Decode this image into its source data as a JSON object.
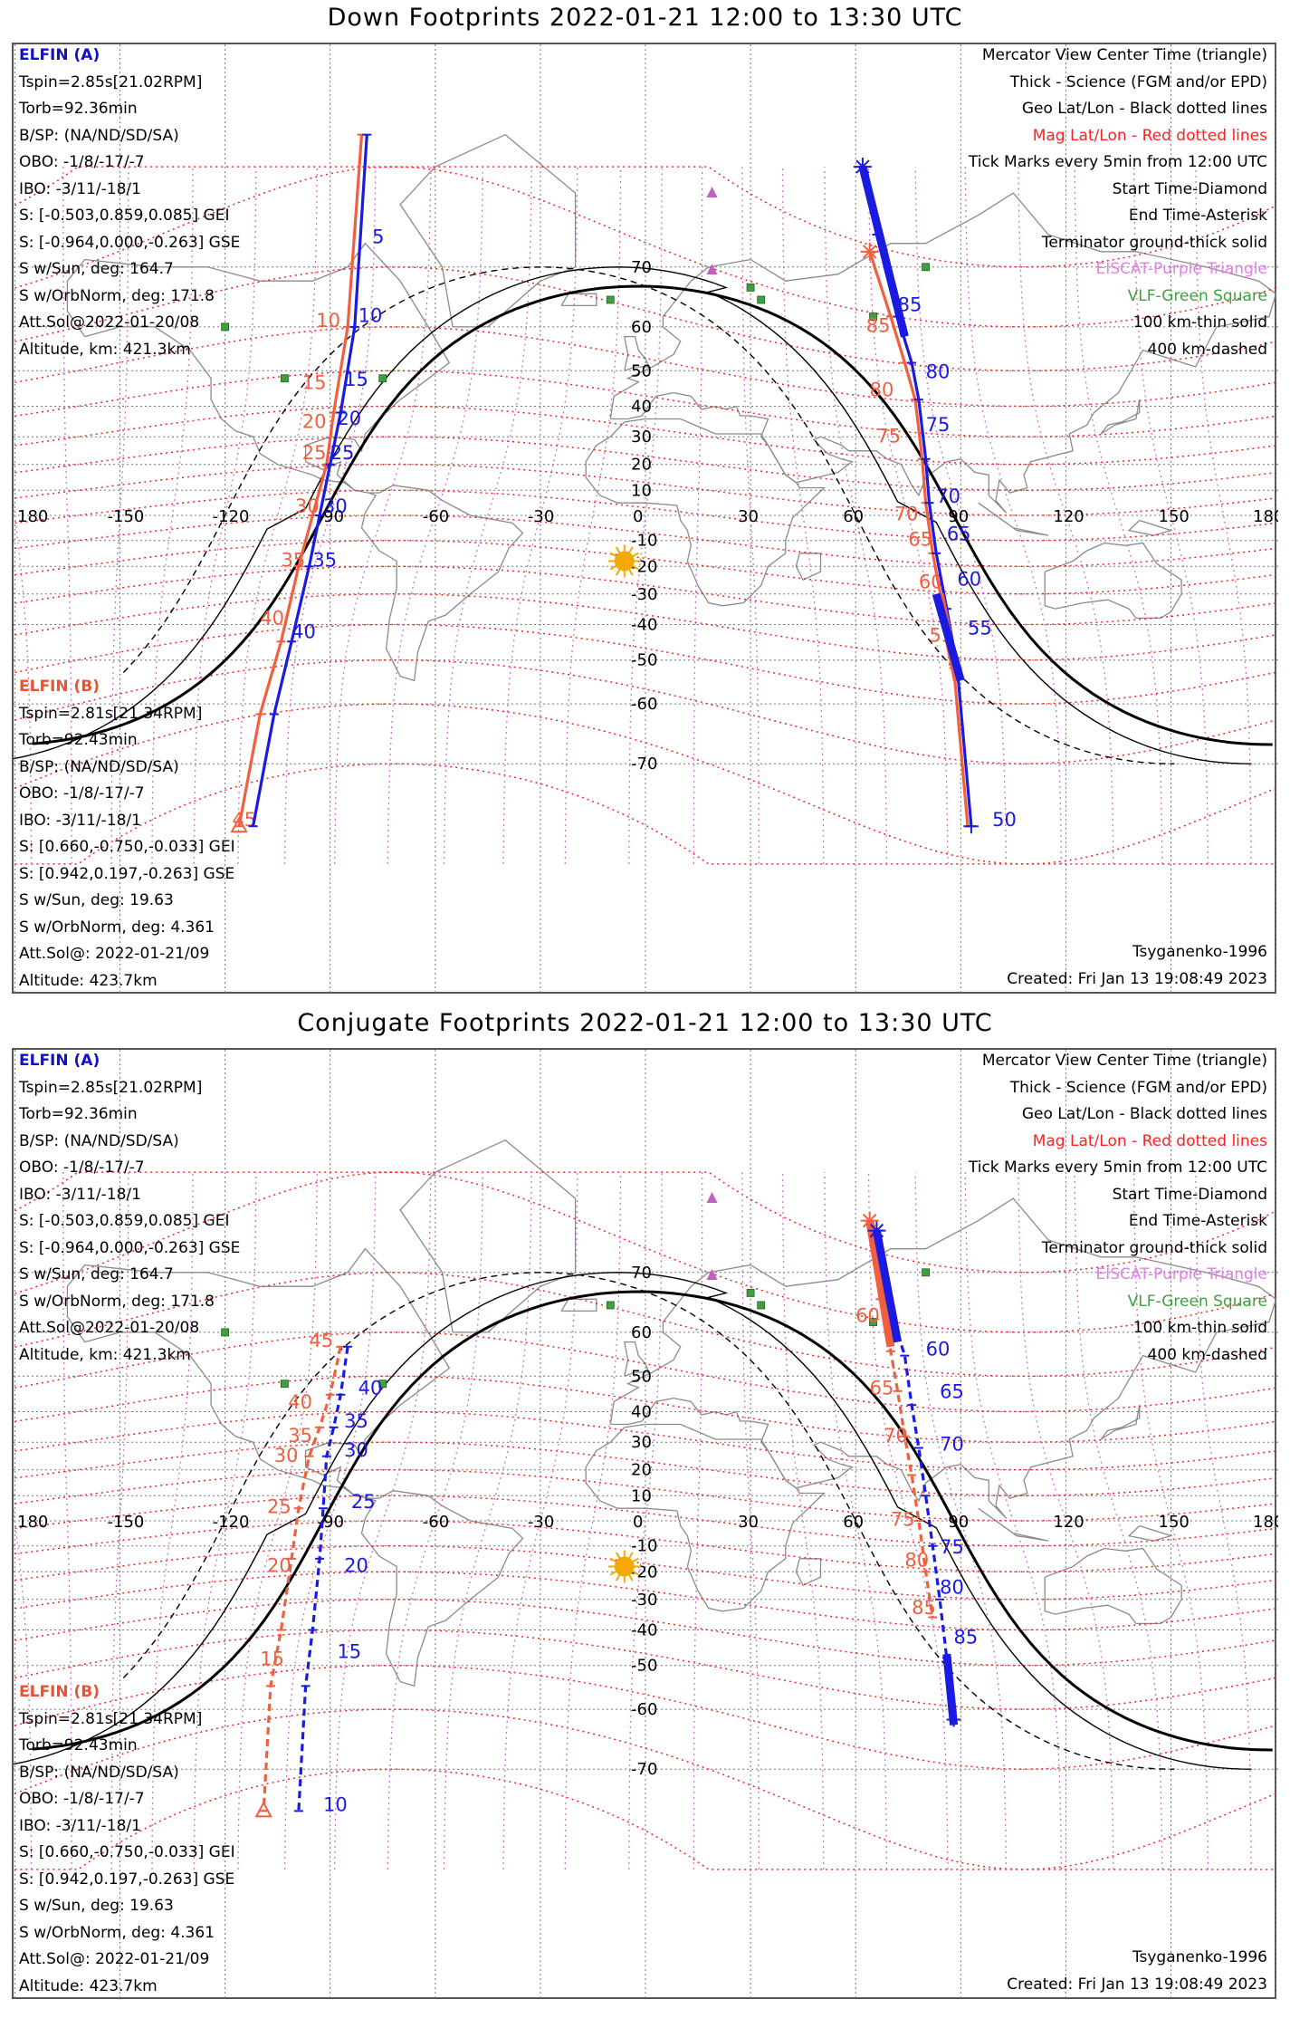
{
  "colors": {
    "elfin_a": "#1a1ae0",
    "elfin_b": "#f06040",
    "mag_grid": "#ff2020",
    "geo_grid": "#777777",
    "eiscat": "#d070d0",
    "vlf": "#40a040",
    "sun": "#f5a800",
    "terminator": "#000000"
  },
  "lon_ticks": [
    "180",
    "-150",
    "-120",
    "-90",
    "-60",
    "-30",
    "0",
    "30",
    "60",
    "90",
    "120",
    "150",
    "180"
  ],
  "lat_ticks": [
    "70",
    "60",
    "50",
    "40",
    "30",
    "20",
    "10",
    "-10",
    "-20",
    "-30",
    "-40",
    "-50",
    "-60",
    "-70"
  ],
  "elfin_a": {
    "name": "ELFIN (A)",
    "lines": [
      "Tspin=2.85s[21.02RPM]",
      "Torb=92.36min",
      "B/SP: (NA/ND/SD/SA)",
      "OBO: -1/8/-17/-7",
      "IBO: -3/11/-18/1",
      "S: [-0.503,0.859,0.085] GEI",
      "S: [-0.964,0.000,-0.263] GSE",
      "S w/Sun, deg: 164.7",
      "S w/OrbNorm, deg: 171.8",
      "Att.Sol@2022-01-20/08",
      "Altitude, km: 421.3km"
    ]
  },
  "elfin_b": {
    "name": "ELFIN (B)",
    "lines": [
      "Tspin=2.81s[21.34RPM]",
      "Torb=92.43min",
      "B/SP: (NA/ND/SD/SA)",
      "OBO: -1/8/-17/-7",
      "IBO: -3/11/-18/1",
      "S: [0.660,-0.750,-0.033] GEI",
      "S: [0.942,0.197,-0.263] GSE",
      "S w/Sun, deg: 19.63",
      "S w/OrbNorm, deg: 4.361",
      "Att.Sol@: 2022-01-21/09",
      "Altitude: 423.7km"
    ]
  },
  "legend": [
    {
      "text": "Mercator View Center Time (triangle)",
      "color": "black"
    },
    {
      "text": "Thick - Science (FGM and/or EPD)",
      "color": "black"
    },
    {
      "text": "Geo Lat/Lon - Black dotted lines",
      "color": "black"
    },
    {
      "text": "Mag Lat/Lon - Red dotted lines",
      "color": "red"
    },
    {
      "text": "Tick Marks every 5min from 12:00 UTC",
      "color": "black"
    },
    {
      "text": "Start Time-Diamond",
      "color": "black"
    },
    {
      "text": "End Time-Asterisk",
      "color": "black"
    },
    {
      "text": "Terminator ground-thick solid",
      "color": "black"
    },
    {
      "text": "EISCAT-Purple Triangle",
      "color": "purple"
    },
    {
      "text": "VLF-Green Square",
      "color": "green"
    },
    {
      "text": "100 km-thin solid",
      "color": "black"
    },
    {
      "text": "400 km-dashed",
      "color": "black"
    }
  ],
  "model": "Tsyganenko-1996",
  "created": "Created: Fri Jan 13 19:08:49 2023",
  "panels": [
    {
      "title": "Down Footprints 2022-01-21 12:00 to 13:30 UTC",
      "a_west": {
        "pts": [
          [
            -79.5,
            82
          ],
          [
            -83,
            60
          ],
          [
            -87,
            38
          ],
          [
            -90,
            20
          ],
          [
            -93,
            0
          ],
          [
            -96,
            -20
          ],
          [
            -101,
            -45
          ],
          [
            -106,
            -62
          ],
          [
            -112,
            -77
          ]
        ],
        "dashed": false,
        "labels": [
          [
            "5",
            -78,
            73
          ],
          [
            "10",
            -82,
            61
          ],
          [
            "15",
            -86,
            46
          ],
          [
            "20",
            -88,
            34
          ],
          [
            "25",
            -90,
            22
          ],
          [
            "30",
            -92,
            1
          ],
          [
            "35",
            -95,
            -20
          ],
          [
            "40",
            -101,
            -44
          ]
        ]
      },
      "b_west": {
        "pts": [
          [
            -81,
            82
          ],
          [
            -85,
            60
          ],
          [
            -89,
            38
          ],
          [
            -91,
            20
          ],
          [
            -95,
            0
          ],
          [
            -99,
            -20
          ],
          [
            -104,
            -45
          ],
          [
            -110,
            -62
          ],
          [
            -116,
            -77
          ]
        ],
        "dashed": false,
        "labels": [
          [
            "10",
            -94,
            60
          ],
          [
            "15",
            -98,
            45
          ],
          [
            "20",
            -98,
            33
          ],
          [
            "25",
            -98,
            22
          ],
          [
            "30",
            -100,
            1
          ],
          [
            "35",
            -104,
            -20
          ],
          [
            "40",
            -110,
            -40
          ],
          [
            "45",
            -118,
            -77
          ]
        ]
      },
      "a_east": {
        "pts": [
          [
            62,
            80
          ],
          [
            66,
            74
          ],
          [
            72,
            62
          ],
          [
            76,
            52
          ],
          [
            78,
            42
          ],
          [
            80,
            22
          ],
          [
            81,
            5
          ],
          [
            83,
            -15
          ],
          [
            86,
            -35
          ],
          [
            89,
            -52
          ],
          [
            93,
            -77
          ]
        ],
        "dashed": false,
        "labels": [
          [
            "85",
            72,
            63
          ],
          [
            "80",
            80,
            48
          ],
          [
            "75",
            80,
            32
          ],
          [
            "70",
            83,
            5
          ],
          [
            "65",
            86,
            -10
          ],
          [
            "60",
            89,
            -27
          ],
          [
            "55",
            92,
            -43
          ],
          [
            "50",
            99,
            -77
          ]
        ]
      },
      "b_east": {
        "pts": [
          [
            64,
            72
          ],
          [
            70,
            62
          ],
          [
            74,
            52
          ],
          [
            77,
            42
          ],
          [
            79,
            22
          ],
          [
            80,
            5
          ],
          [
            82,
            -15
          ],
          [
            85,
            -35
          ],
          [
            88,
            -52
          ],
          [
            92,
            -77
          ]
        ],
        "dashed": false,
        "labels": [
          [
            "85",
            63,
            59
          ],
          [
            "80",
            64,
            43
          ],
          [
            "75",
            66,
            28
          ],
          [
            "70",
            71,
            -2
          ],
          [
            "65",
            75,
            -12
          ],
          [
            "60",
            78,
            -28
          ],
          [
            "55",
            81,
            -45
          ]
        ]
      },
      "a_thick_east": [
        [
          [
            62,
            80
          ],
          [
            74,
            58
          ]
        ],
        [
          [
            83,
            -30
          ],
          [
            90,
            -55
          ]
        ]
      ],
      "b_thick_east": [
        [
          [
            84,
            -30
          ],
          [
            89,
            -55
          ]
        ]
      ]
    },
    {
      "title": "Conjugate Footprints 2022-01-21 12:00 to 13:30 UTC",
      "a_west": {
        "pts": [
          [
            -85,
            57
          ],
          [
            -87,
            45
          ],
          [
            -89,
            35
          ],
          [
            -91,
            25
          ],
          [
            -92,
            5
          ],
          [
            -93,
            -15
          ],
          [
            -95,
            -40
          ],
          [
            -97,
            -55
          ],
          [
            -99,
            -75
          ]
        ],
        "dashed": true,
        "labels": [
          [
            "40",
            -82,
            45
          ],
          [
            "35",
            -86,
            35
          ],
          [
            "30",
            -86,
            25
          ],
          [
            "25",
            -84,
            5
          ],
          [
            "20",
            -86,
            -20
          ],
          [
            "15",
            -88,
            -48
          ],
          [
            "10",
            -92,
            -75
          ]
        ]
      },
      "b_west": {
        "pts": [
          [
            -87,
            57
          ],
          [
            -90,
            45
          ],
          [
            -93,
            35
          ],
          [
            -96,
            25
          ],
          [
            -99,
            5
          ],
          [
            -101,
            -15
          ],
          [
            -104,
            -40
          ],
          [
            -107,
            -55
          ],
          [
            -109,
            -75
          ]
        ],
        "dashed": true,
        "labels": [
          [
            "45",
            -96,
            57
          ],
          [
            "40",
            -102,
            41
          ],
          [
            "35",
            -102,
            30
          ],
          [
            "30",
            -106,
            23
          ],
          [
            "25",
            -108,
            3
          ],
          [
            "20",
            -108,
            -20
          ],
          [
            "15",
            -110,
            -50
          ]
        ]
      },
      "a_east": {
        "pts": [
          [
            66,
            75
          ],
          [
            70,
            64
          ],
          [
            74,
            55
          ],
          [
            76,
            42
          ],
          [
            78,
            28
          ],
          [
            80,
            10
          ],
          [
            82,
            -10
          ],
          [
            84,
            -30
          ],
          [
            86,
            -48
          ],
          [
            88,
            -62
          ]
        ],
        "dashed": true,
        "labels": [
          [
            "60",
            80,
            55
          ],
          [
            "65",
            84,
            44
          ],
          [
            "70",
            84,
            27
          ],
          [
            "75",
            84,
            -13
          ],
          [
            "80",
            84,
            -28
          ],
          [
            "85",
            88,
            -44
          ]
        ]
      },
      "b_east": {
        "pts": [
          [
            64,
            76
          ],
          [
            67,
            66
          ],
          [
            70,
            56
          ],
          [
            72,
            46
          ],
          [
            74,
            32
          ],
          [
            76,
            18
          ],
          [
            78,
            0
          ],
          [
            80,
            -20
          ],
          [
            82,
            -36
          ]
        ],
        "dashed": true,
        "labels": [
          [
            "60",
            60,
            62
          ],
          [
            "65",
            64,
            45
          ],
          [
            "70",
            68,
            30
          ],
          [
            "75",
            70,
            -2
          ],
          [
            "80",
            74,
            -18
          ],
          [
            "85",
            76,
            -35
          ]
        ]
      },
      "a_thick_east": [
        [
          [
            66,
            75
          ],
          [
            72,
            58
          ]
        ],
        [
          [
            86,
            -47
          ],
          [
            88,
            -63
          ]
        ]
      ],
      "b_thick_east": [
        [
          [
            64,
            76
          ],
          [
            70,
            57
          ]
        ]
      ]
    }
  ]
}
